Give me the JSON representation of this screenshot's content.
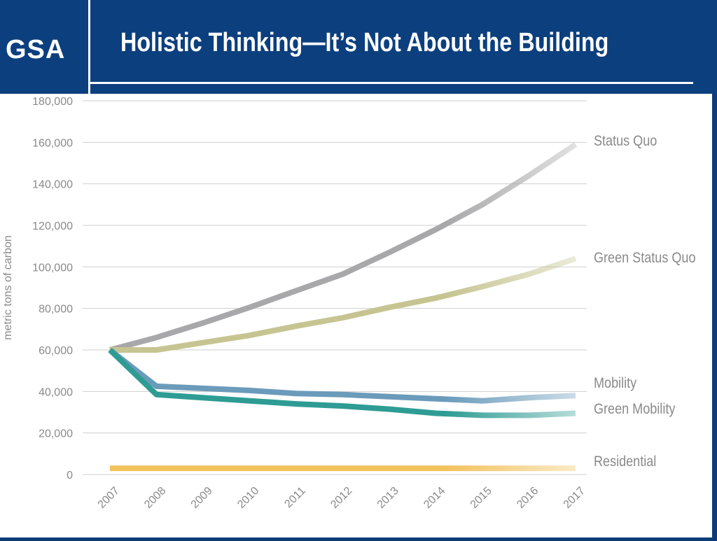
{
  "header": {
    "logo_text": "GSA",
    "title": "Holistic Thinking—It’s Not About the Building"
  },
  "chart_data": {
    "type": "line",
    "title": "",
    "xlabel": "",
    "ylabel": "metric tons of carbon",
    "x": [
      "2007",
      "2008",
      "2009",
      "2010",
      "2011",
      "2012",
      "2013",
      "2014",
      "2015",
      "2016",
      "2017"
    ],
    "ylim": [
      0,
      180000
    ],
    "yticks": [
      0,
      20000,
      40000,
      60000,
      80000,
      100000,
      120000,
      140000,
      160000,
      180000
    ],
    "ytick_labels": [
      "0",
      "20,000",
      "40,000",
      "60,000",
      "80,000",
      "100,000",
      "120,000",
      "140,000",
      "160,000",
      "180,000"
    ],
    "grid": true,
    "series": [
      {
        "name": "Status Quo",
        "color": "#a8a8aa",
        "values": [
          60000,
          66000,
          73000,
          80500,
          88500,
          96500,
          107000,
          118000,
          130000,
          144000,
          159000
        ]
      },
      {
        "name": "Green Status Quo",
        "color": "#c6c491",
        "values": [
          60000,
          60000,
          63500,
          67000,
          71500,
          75500,
          80500,
          85000,
          90500,
          96500,
          104000
        ]
      },
      {
        "name": "Mobility",
        "color": "#6b9bbb",
        "values": [
          60000,
          42500,
          41500,
          40500,
          39000,
          38500,
          37500,
          36500,
          35500,
          37000,
          38000
        ]
      },
      {
        "name": "Green Mobility",
        "color": "#2e9c94",
        "values": [
          60000,
          38500,
          37000,
          35500,
          34000,
          33000,
          31500,
          29500,
          28500,
          28500,
          29500
        ]
      },
      {
        "name": "Residential",
        "color": "#f2c25c",
        "values": [
          3000,
          3000,
          3000,
          3000,
          3000,
          3000,
          3000,
          3000,
          3000,
          3000,
          3000
        ]
      }
    ]
  }
}
